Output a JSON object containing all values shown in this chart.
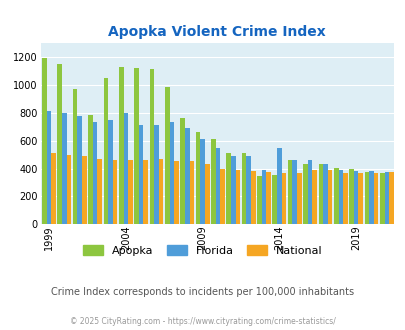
{
  "title": "Apopka Violent Crime Index",
  "subtitle": "Crime Index corresponds to incidents per 100,000 inhabitants",
  "footer": "© 2025 CityRating.com - https://www.cityrating.com/crime-statistics/",
  "years": [
    1999,
    2000,
    2001,
    2002,
    2003,
    2004,
    2005,
    2006,
    2007,
    2008,
    2009,
    2010,
    2011,
    2012,
    2013,
    2014,
    2015,
    2016,
    2017,
    2018,
    2019,
    2020,
    2021
  ],
  "apopka": [
    1190,
    1150,
    970,
    780,
    1050,
    1130,
    1120,
    1110,
    985,
    760,
    665,
    610,
    510,
    510,
    350,
    355,
    460,
    430,
    430,
    405,
    400,
    375,
    370
  ],
  "florida": [
    810,
    800,
    775,
    730,
    750,
    800,
    710,
    710,
    730,
    690,
    610,
    545,
    490,
    490,
    390,
    548,
    460,
    460,
    430,
    390,
    385,
    380,
    375
  ],
  "national": [
    510,
    500,
    490,
    465,
    460,
    460,
    460,
    470,
    455,
    455,
    430,
    400,
    390,
    385,
    375,
    370,
    370,
    390,
    390,
    370,
    365,
    370,
    375
  ],
  "apopka_color": "#8dc63f",
  "florida_color": "#4f9dd9",
  "national_color": "#f5a623",
  "bg_color": "#deeef5",
  "title_color": "#1565c0",
  "ylim": [
    0,
    1300
  ],
  "yticks": [
    0,
    200,
    400,
    600,
    800,
    1000,
    1200
  ],
  "xtick_years": [
    1999,
    2004,
    2009,
    2014,
    2019
  ],
  "legend_labels": [
    "Apopka",
    "Florida",
    "National"
  ],
  "subtitle_color": "#555555",
  "footer_color": "#999999"
}
